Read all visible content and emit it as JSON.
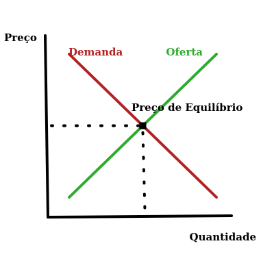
{
  "chart_data": {
    "type": "line",
    "xlabel": "Quantidade",
    "ylabel": "Preço",
    "xlim": [
      0,
      10
    ],
    "ylim": [
      0,
      10
    ],
    "series": [
      {
        "name": "Demanda",
        "color": "#b22222",
        "points": [
          [
            1,
            9
          ],
          [
            9,
            1
          ]
        ]
      },
      {
        "name": "Oferta",
        "color": "#2eab2e",
        "points": [
          [
            1,
            1
          ],
          [
            9,
            9
          ]
        ]
      }
    ],
    "equilibrium": {
      "x": 5,
      "y": 5,
      "label": "Preço de Equilíbrio"
    },
    "axis_color": "#000000"
  }
}
